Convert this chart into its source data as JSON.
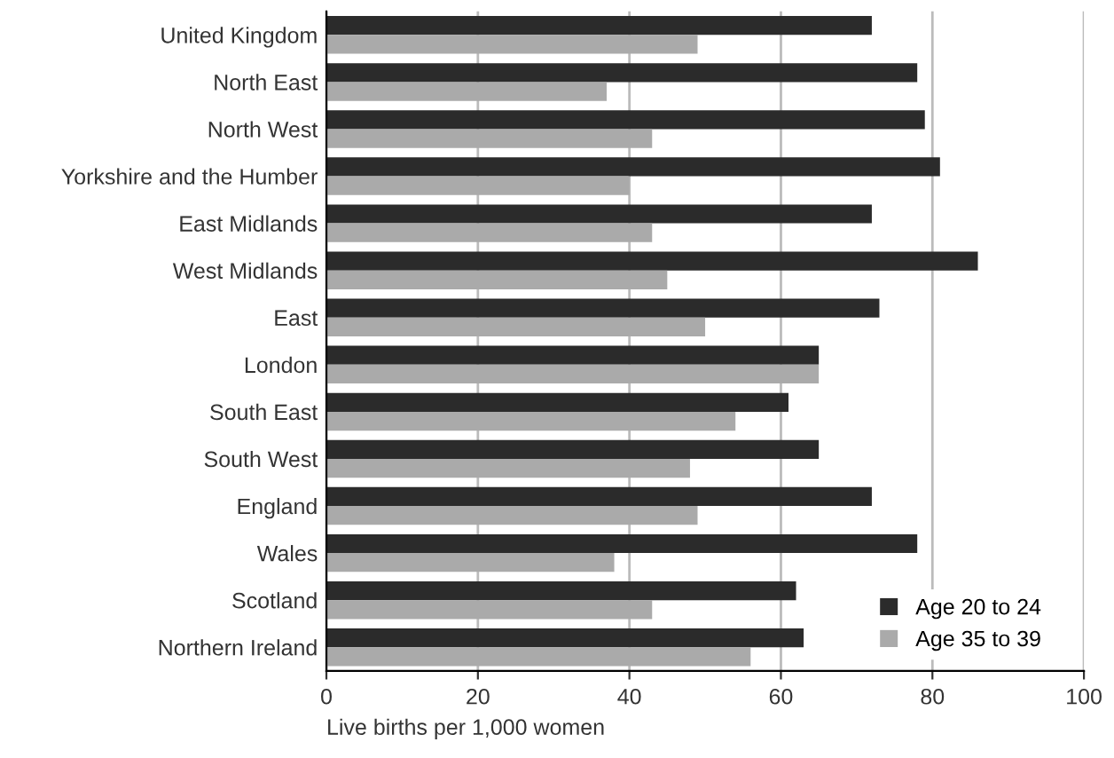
{
  "chart_data": {
    "type": "bar",
    "orientation": "horizontal",
    "xlabel": "Live births per 1,000 women",
    "categories": [
      "United Kingdom",
      "North East",
      "North West",
      "Yorkshire and the Humber",
      "East Midlands",
      "West Midlands",
      "East",
      "London",
      "South East",
      "South West",
      "England",
      "Wales",
      "Scotland",
      "Northern Ireland"
    ],
    "series": [
      {
        "name": "Age 20 to 24",
        "color": "#2b2b2b",
        "values": [
          72,
          78,
          79,
          81,
          72,
          86,
          73,
          65,
          61,
          65,
          72,
          78,
          62,
          63
        ]
      },
      {
        "name": "Age 35 to 39",
        "color": "#aaaaaa",
        "values": [
          49,
          37,
          43,
          40,
          43,
          45,
          50,
          65,
          54,
          48,
          49,
          38,
          43,
          56
        ]
      }
    ],
    "xlim": [
      0,
      100
    ],
    "xticks": [
      0,
      20,
      40,
      60,
      80,
      100
    ],
    "grid": "x",
    "legend": "bottom right"
  }
}
